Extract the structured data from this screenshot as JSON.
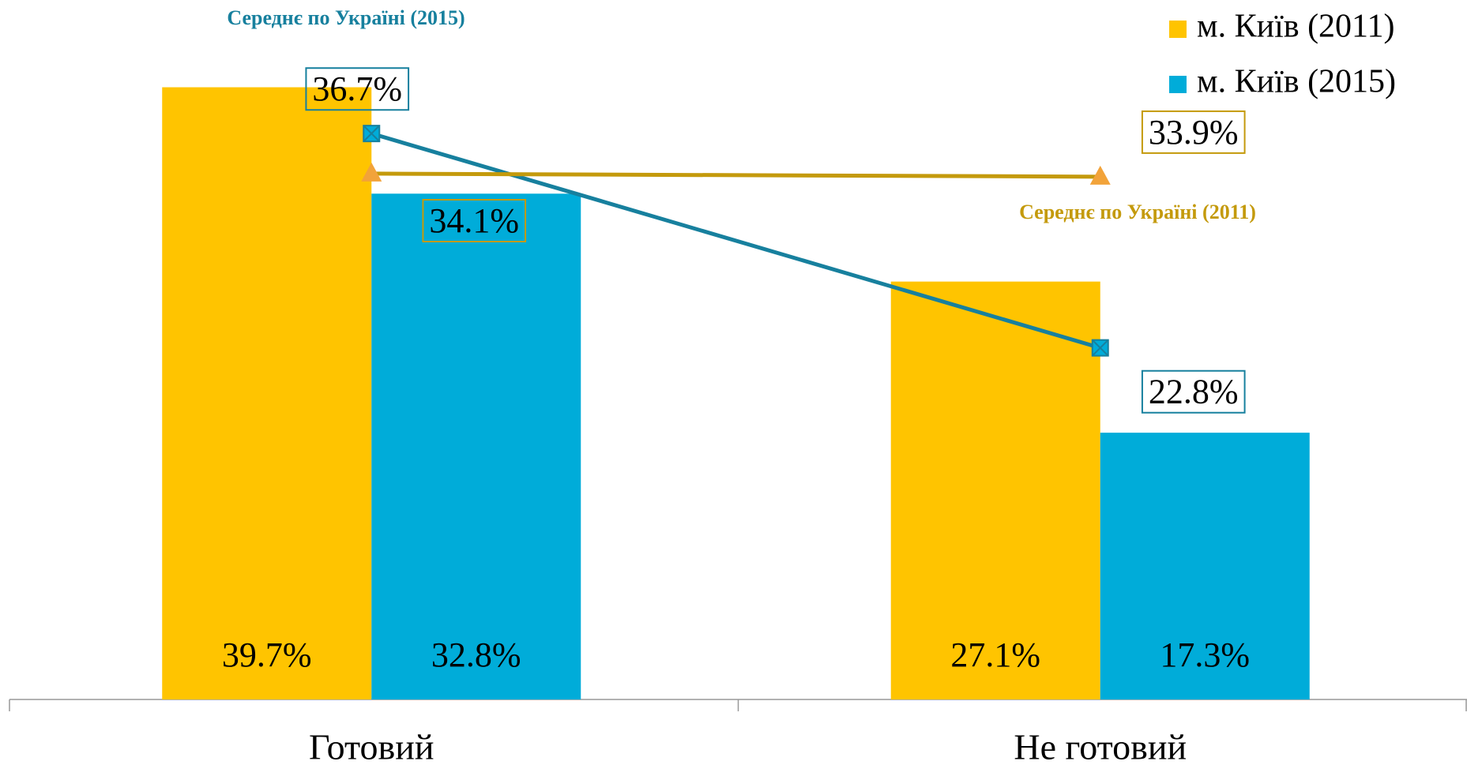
{
  "chart_data": {
    "type": "bar",
    "categories": [
      "Готовий",
      "Не готовий"
    ],
    "ylim": [
      0,
      45
    ],
    "legend": "top-right",
    "series": [
      {
        "name": "м. Київ (2011)",
        "type": "bar",
        "color": "#FFC400",
        "values": [
          39.7,
          27.1
        ],
        "value_labels": [
          "39.7%",
          "27.1%"
        ]
      },
      {
        "name": "м. Київ (2015)",
        "type": "bar",
        "color": "#00ACD9",
        "values": [
          32.8,
          17.3
        ],
        "value_labels": [
          "32.8%",
          "17.3%"
        ]
      },
      {
        "name": "Середнє по Україні (2015)",
        "type": "line",
        "color": "#17809E",
        "marker": "square",
        "values": [
          36.7,
          22.8
        ],
        "value_labels": [
          "36.7%",
          "22.8%"
        ]
      },
      {
        "name": "Середнє по Україні (2011)",
        "type": "line",
        "color": "#C49A0C",
        "marker_color": "#F2A33A",
        "marker": "triangle",
        "values": [
          34.1,
          33.9
        ],
        "value_labels": [
          "34.1%",
          "33.9%"
        ]
      }
    ]
  }
}
